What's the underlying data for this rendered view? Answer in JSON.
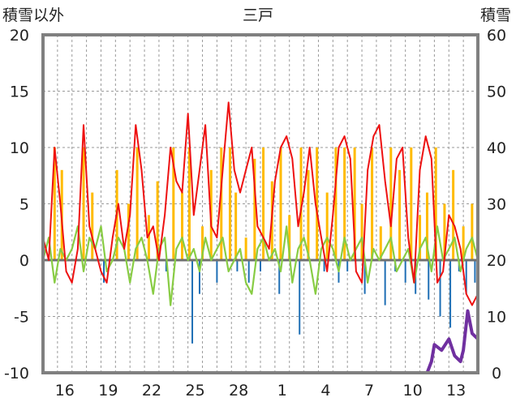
{
  "chart_data": {
    "type": "line",
    "title": "三戸",
    "left_axis_label": "積雪以外",
    "right_axis_label": "積雪",
    "y_left_range": [
      -10,
      20
    ],
    "y_right_range": [
      0,
      60
    ],
    "y_left_ticks": [
      "20",
      "15",
      "10",
      "5",
      "0",
      "-5",
      "-10"
    ],
    "y_right_ticks": [
      "60",
      "50",
      "40",
      "30",
      "20",
      "10",
      "0"
    ],
    "x_tick_labels": [
      "16",
      "19",
      "22",
      "25",
      "28",
      "1",
      "4",
      "7",
      "10",
      "13"
    ],
    "x_range_days": [
      0,
      30
    ],
    "grid": true,
    "colors": {
      "temperature": "#ee1111",
      "temp_change": "#88cc44",
      "sunshine": "#ffbb00",
      "precipitation_bar": "#1f6fb5",
      "snow_depth": "#7030a0",
      "frame": "#808080",
      "zero_line": "#707070"
    },
    "series": [
      {
        "key": "temperature",
        "axis": "left",
        "x": [
          0,
          0.4,
          0.8,
          1.2,
          1.6,
          2.0,
          2.4,
          2.8,
          3.2,
          3.6,
          4.0,
          4.4,
          4.8,
          5.2,
          5.6,
          6.0,
          6.4,
          6.8,
          7.2,
          7.6,
          8.0,
          8.4,
          8.8,
          9.2,
          9.6,
          10.0,
          10.4,
          10.8,
          11.2,
          11.6,
          12.0,
          12.4,
          12.8,
          13.2,
          13.6,
          14.0,
          14.4,
          14.8,
          15.2,
          15.6,
          16.0,
          16.4,
          16.8,
          17.2,
          17.6,
          18.0,
          18.4,
          18.8,
          19.2,
          19.6,
          20.0,
          20.4,
          20.8,
          21.2,
          21.6,
          22.0,
          22.4,
          22.8,
          23.2,
          23.6,
          24.0,
          24.4,
          24.8,
          25.2,
          25.6,
          26.0,
          26.4,
          26.8,
          27.2,
          27.6,
          28.0,
          28.4,
          28.8,
          29.2,
          29.6,
          30.0
        ],
        "values": [
          2,
          0,
          10,
          5,
          -1,
          -2,
          1,
          12,
          3,
          1,
          -1,
          -2,
          2,
          5,
          1,
          4,
          12,
          8,
          2,
          3,
          0,
          4,
          10,
          7,
          6,
          13,
          4,
          8,
          12,
          3,
          2,
          8,
          14,
          8,
          6,
          8,
          10,
          3,
          2,
          1,
          7,
          10,
          11,
          9,
          3,
          6,
          10,
          5,
          2,
          -1,
          4,
          10,
          11,
          9,
          -1,
          -2,
          8,
          11,
          12,
          7,
          3,
          9,
          10,
          2,
          -2,
          8,
          11,
          9,
          -2,
          -1,
          4,
          3,
          1,
          -3,
          -4,
          -3
        ]
      },
      {
        "key": "temp_change",
        "axis": "left",
        "x": [
          0,
          0.4,
          0.8,
          1.2,
          1.6,
          2.0,
          2.4,
          2.8,
          3.2,
          3.6,
          4.0,
          4.4,
          4.8,
          5.2,
          5.6,
          6.0,
          6.4,
          6.8,
          7.2,
          7.6,
          8.0,
          8.4,
          8.8,
          9.2,
          9.6,
          10.0,
          10.4,
          10.8,
          11.2,
          11.6,
          12.0,
          12.4,
          12.8,
          13.2,
          13.6,
          14.0,
          14.4,
          14.8,
          15.2,
          15.6,
          16.0,
          16.4,
          16.8,
          17.2,
          17.6,
          18.0,
          18.4,
          18.8,
          19.2,
          19.6,
          20.0,
          20.4,
          20.8,
          21.2,
          21.6,
          22.0,
          22.4,
          22.8,
          23.2,
          23.6,
          24.0,
          24.4,
          24.8,
          25.2,
          25.6,
          26.0,
          26.4,
          26.8,
          27.2,
          27.6,
          28.0,
          28.4,
          28.8,
          29.2,
          29.6,
          30.0
        ],
        "values": [
          0,
          2,
          -2,
          1,
          0,
          1,
          3,
          -1,
          2,
          1,
          3,
          -1,
          0,
          2,
          1,
          -2,
          1,
          2,
          0,
          -3,
          1,
          2,
          -4,
          1,
          2,
          0,
          1,
          -1,
          2,
          0,
          1,
          2,
          -1,
          0,
          1,
          -2,
          -3,
          1,
          2,
          0,
          1,
          -1,
          3,
          -2,
          1,
          2,
          0,
          -3,
          1,
          2,
          1,
          -1,
          2,
          0,
          1,
          2,
          -2,
          1,
          0,
          1,
          2,
          -1,
          0,
          1,
          -2,
          1,
          2,
          -1,
          3,
          0,
          1,
          2,
          -1,
          1,
          2,
          0
        ]
      },
      {
        "key": "snow_depth",
        "axis": "right",
        "x": [
          0,
          26.5,
          26.8,
          27.0,
          27.5,
          28.0,
          28.4,
          28.8,
          29.0,
          29.3,
          29.6,
          30.0
        ],
        "values": [
          0,
          0,
          2,
          5,
          4,
          6,
          3,
          2,
          4,
          11,
          7,
          6
        ]
      }
    ],
    "bars": [
      {
        "key": "sunshine",
        "axis": "left",
        "x": [
          0.8,
          1.3,
          2.8,
          3.4,
          5.1,
          5.9,
          6.5,
          7.3,
          7.9,
          9.0,
          9.6,
          10.1,
          11.0,
          11.6,
          12.3,
          12.9,
          13.3,
          14.0,
          14.6,
          15.2,
          15.8,
          16.4,
          17.0,
          17.8,
          18.3,
          18.9,
          19.6,
          20.2,
          20.8,
          21.5,
          22.0,
          22.7,
          23.3,
          24.0,
          24.6,
          25.4,
          26.0,
          26.5,
          27.1,
          27.7,
          28.3,
          29.0,
          29.6
        ],
        "values": [
          10,
          8,
          10,
          6,
          8,
          5,
          10,
          4,
          7,
          10,
          6,
          10,
          3,
          8,
          10,
          10,
          6,
          2,
          9,
          10,
          7,
          10,
          4,
          10,
          8,
          10,
          6,
          10,
          10,
          10,
          5,
          10,
          3,
          10,
          8,
          10,
          4,
          6,
          10,
          5,
          8,
          3,
          5
        ]
      },
      {
        "key": "precipitation_bar",
        "axis": "left",
        "x": [
          4.2,
          8.5,
          10.3,
          10.8,
          12.0,
          13.4,
          14.2,
          15.0,
          16.3,
          17.7,
          19.4,
          20.4,
          21.0,
          22.2,
          23.6,
          24.3,
          25.0,
          25.7,
          26.6,
          27.4,
          28.1,
          28.7,
          29.2,
          29.8
        ],
        "values": [
          -2,
          -1,
          -7.4,
          -3,
          -2,
          -1,
          -2,
          -1,
          -3,
          -6.6,
          -1,
          -2,
          -1,
          -3,
          -4,
          -1,
          -2,
          -3,
          -3.5,
          -5,
          -6,
          -1,
          -3,
          -2
        ]
      }
    ]
  }
}
